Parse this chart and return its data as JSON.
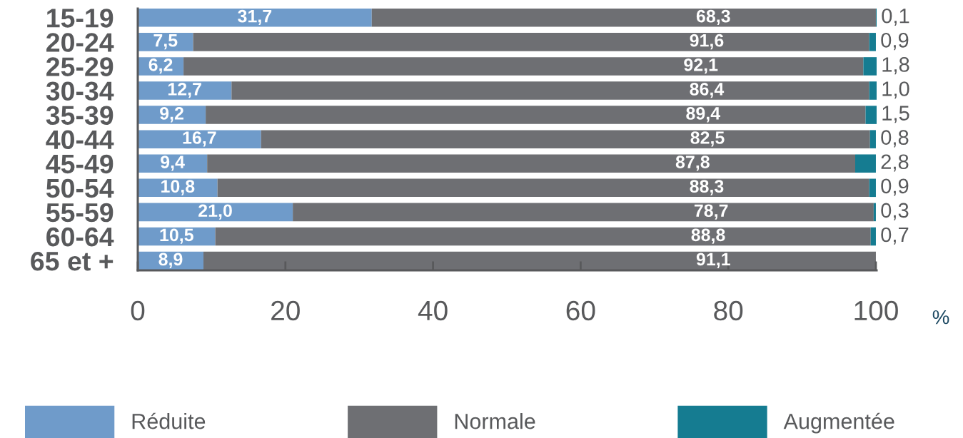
{
  "chart_data": {
    "type": "bar",
    "orientation": "horizontal",
    "stacked": true,
    "categories": [
      "15-19",
      "20-24",
      "25-29",
      "30-34",
      "35-39",
      "40-44",
      "45-49",
      "50-54",
      "55-59",
      "60-64",
      "65 et +"
    ],
    "series": [
      {
        "name": "Réduite",
        "color": "#6f9bca",
        "values": [
          31.7,
          7.5,
          6.2,
          12.7,
          9.2,
          16.7,
          9.4,
          10.8,
          21.0,
          10.5,
          8.9
        ],
        "value_labels": [
          "31,7",
          "7,5",
          "6,2",
          "12,7",
          "9,2",
          "16,7",
          "9,4",
          "10,8",
          "21,0",
          "10,5",
          "8,9"
        ]
      },
      {
        "name": "Normale",
        "color": "#6e6f73",
        "values": [
          68.3,
          91.6,
          92.1,
          86.4,
          89.4,
          82.5,
          87.8,
          88.3,
          78.7,
          88.8,
          91.1
        ],
        "value_labels": [
          "68,3",
          "91,6",
          "92,1",
          "86,4",
          "89,4",
          "82,5",
          "87,8",
          "88,3",
          "78,7",
          "88,8",
          "91,1"
        ]
      },
      {
        "name": "Augmentée",
        "color": "#157c91",
        "values": [
          0.1,
          0.9,
          1.8,
          1.0,
          1.5,
          0.8,
          2.8,
          0.9,
          0.3,
          0.7,
          null
        ],
        "value_labels": [
          "0,1",
          "0,9",
          "1,8",
          "1,0",
          "1,5",
          "0,8",
          "2,8",
          "0,9",
          "0,3",
          "0,7",
          null
        ]
      }
    ],
    "xlim": [
      0,
      100.1
    ],
    "xticks": [
      0,
      20,
      40,
      60,
      80,
      100
    ],
    "xlabel": "%",
    "legend": "bottom",
    "grid": false
  }
}
